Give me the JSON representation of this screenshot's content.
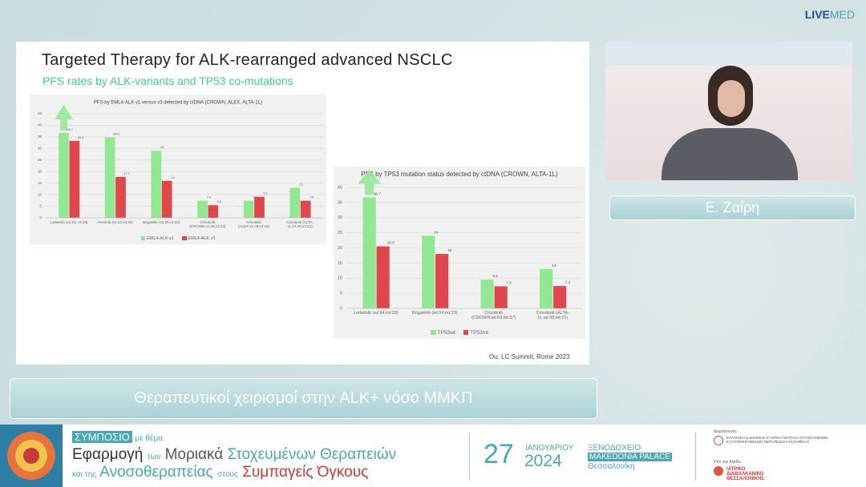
{
  "header": {
    "logo_live": "LIVE",
    "logo_med": "MED"
  },
  "slide": {
    "title": "Targeted Therapy for ALK-rearranged advanced NSCLC",
    "subtitle": "PFS rates by ALK-variants and TP53 co-mutations",
    "citation": "Ou, LC Summit, Rome 2023"
  },
  "chart_data": [
    {
      "type": "bar",
      "title": "PFS by EML4-ALK v1 versus v3 detected by ctDNA (CROWN, ALEX, ALTA-1L)",
      "categories": [
        "Lorlatinib (v1:20; v3:18)",
        "Alectinib (v1:22;v3:25)",
        "Brigatinib (v1:25;v3:23)",
        "Crizotinib (CROWN:v1:26;v3:23)",
        "Crizotinib (ALEX:v1:28;v3:24)",
        "Crizotinib (ALTA-1L:v1:30;v3:21)"
      ],
      "series": [
        {
          "name": "EML4-ALK v1",
          "color": "#92e892",
          "values": [
            36.7,
            34.8,
            29,
            7.4,
            7.4,
            13
          ]
        },
        {
          "name": "EML4-ALK v3",
          "color": "#e0474c",
          "values": [
            33.3,
            17.7,
            16,
            5.5,
            9.1,
            7.4
          ]
        }
      ],
      "ylim": [
        0,
        45
      ],
      "yticks": [
        0,
        5,
        10,
        15,
        20,
        25,
        30,
        35,
        40,
        45
      ],
      "grid": true,
      "legend": "bottom"
    },
    {
      "type": "bar",
      "title": "PFS by TP53 mutation status detected by ctDNA (CROWN, ALTA-1L)",
      "categories": [
        "Lorlatinib (wt:64;mt:33)",
        "Brigatinib (wt:54;mt:23)",
        "Crizotinib (CROWN:wt:63;mt:37)",
        "Crizotinib (ALTA-1L:wt:39;mt:21)"
      ],
      "series": [
        {
          "name": "TP53wt",
          "color": "#92e892",
          "values": [
            36.7,
            24,
            9.5,
            13
          ]
        },
        {
          "name": "TP53mt",
          "color": "#e0474c",
          "values": [
            20.5,
            18,
            7.3,
            7.4
          ]
        }
      ],
      "ylim": [
        0,
        40
      ],
      "yticks": [
        0,
        5,
        10,
        15,
        20,
        25,
        30,
        35,
        40
      ],
      "grid": true,
      "legend": "bottom"
    }
  ],
  "speaker": {
    "name": "Ε. Ζαΐρη"
  },
  "caption": "Θεραπευτικοί χειρισμοί στην ALK+ νόσο ΜΜΚΠ",
  "banner": {
    "symposium": "ΣΥΜΠΟΣΙΟ",
    "with_theme": "με θέμα",
    "line1": [
      "Εφαρμογή",
      "των",
      "Μοριακά",
      "Στοχευμένων Θεραπειών"
    ],
    "line2": [
      "και της",
      "Ανοσοθεραπείας",
      "στους",
      "Συμπαγείς Όγκους"
    ],
    "day": "27",
    "month": "ΙΑΝΟΥΑΡΙΟΥ",
    "year": "2024",
    "hotel": "ΞΕΝΟΔΟΧΕΙΟ",
    "venue": "MAKEDONIA PALACE",
    "city": "Θεσσαλονίκη",
    "organizer_label": "Διοργάνωση:",
    "organizer": "ΕΛΛΗΝΙΚΗ & ΔΙΕΘΝΗΣ ΕΤΑΙΡΕΙΑ ΜΟΡΙΑΚΑ ΣΤΟΧΕΥΜΕΝΩΝ ΕΞΑΤΟΜΙΚΕΥΜΕΝΩΝ ΘΕΡΑΠΕΙΩΝ ΚΑΚΟΗΘΕΙΑΣ",
    "auspices_label": "Υπό την Αιγίδα:",
    "auspices": "ΙΑΤΡΙΚΟ ΔΙΑΒΑΛΚΑΝΙΚΟ ΘΕΣΣΑΛΟΝΙΚΗΣ"
  }
}
